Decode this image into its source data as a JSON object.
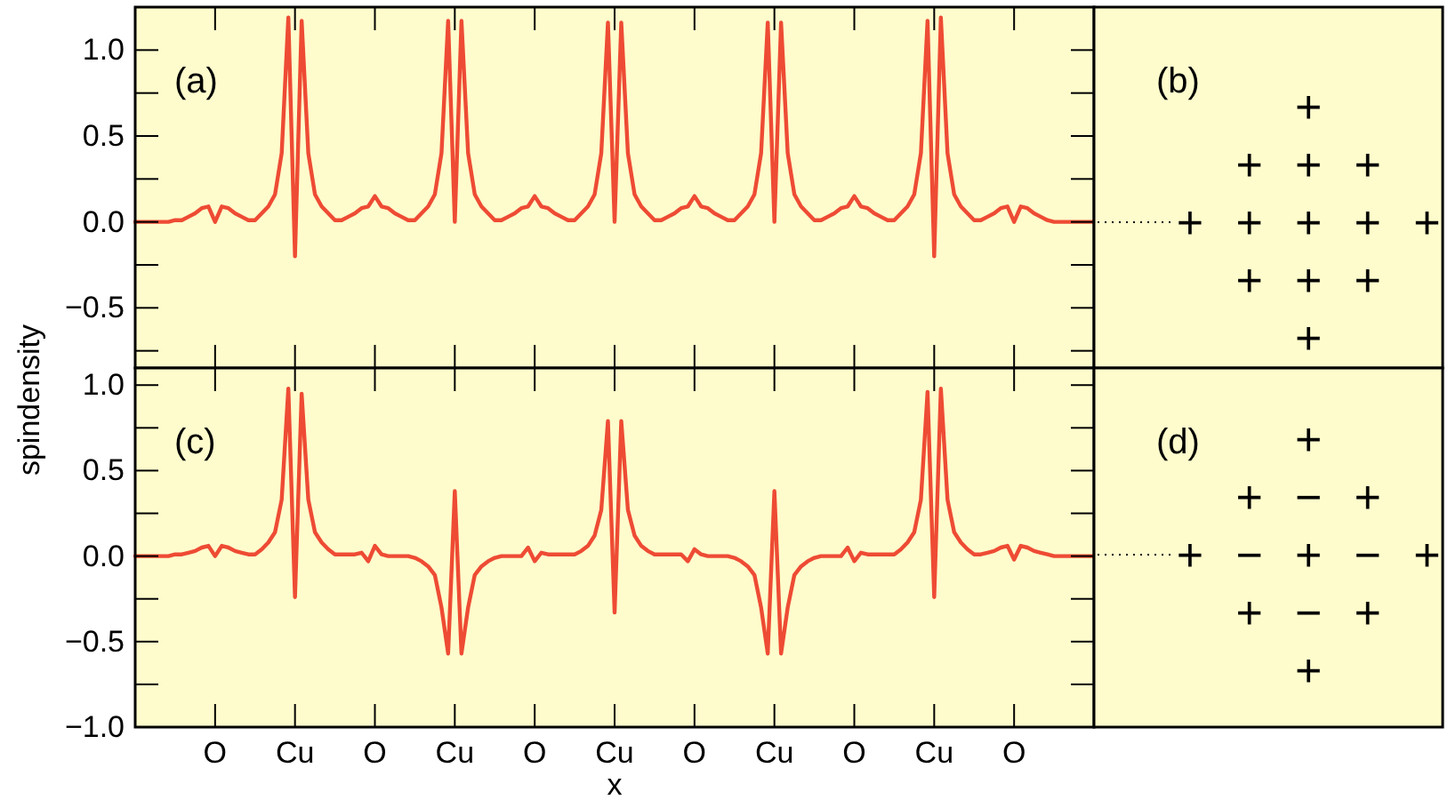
{
  "chart_data": [
    {
      "type": "line",
      "title": "(a)",
      "tick_labels": "y",
      "color": "#ee4b34",
      "categories": [
        null,
        null,
        null,
        null,
        null,
        null,
        null,
        null,
        null,
        null,
        null,
        null,
        null,
        null,
        null,
        null,
        null,
        null,
        null,
        null,
        null,
        null,
        null,
        null,
        null,
        null,
        null,
        null,
        null,
        null,
        null,
        null,
        null,
        null,
        null,
        null,
        null,
        null,
        null,
        null,
        null,
        null,
        null,
        null,
        null,
        null,
        null,
        null,
        null,
        null,
        null,
        null,
        null,
        null,
        null,
        null,
        null,
        null,
        null,
        null,
        null,
        null,
        null,
        null,
        null,
        null,
        null,
        null,
        null,
        null,
        null,
        null,
        null,
        null,
        null,
        null,
        null,
        null,
        null,
        null,
        null,
        null,
        null,
        null,
        null,
        null,
        null,
        null,
        null,
        null,
        null,
        null,
        null,
        null,
        null,
        null,
        null,
        null,
        null,
        null,
        null,
        null,
        null,
        null,
        null,
        null,
        null,
        null,
        null,
        null,
        null,
        null,
        null,
        null,
        null,
        null,
        null,
        null,
        null,
        null,
        null,
        null,
        null,
        null,
        null,
        null,
        null,
        null,
        null,
        null,
        null,
        null,
        null,
        null,
        null,
        null,
        null,
        null,
        null,
        null,
        null,
        null,
        null,
        null,
        null
      ],
      "values": [
        0,
        0,
        0,
        0,
        0,
        0,
        0.01,
        0.01,
        0.03,
        0.05,
        0.08,
        0.09,
        0,
        0.09,
        0.08,
        0.05,
        0.03,
        0.01,
        0.01,
        0.05,
        0.09,
        0.16,
        0.4,
        1.19,
        -0.2,
        1.17,
        0.4,
        0.16,
        0.09,
        0.05,
        0.01,
        0.01,
        0.03,
        0.05,
        0.08,
        0.09,
        0.15,
        0.09,
        0.08,
        0.05,
        0.03,
        0.01,
        0.01,
        0.05,
        0.09,
        0.16,
        0.4,
        1.17,
        0,
        1.17,
        0.4,
        0.16,
        0.09,
        0.05,
        0.01,
        0.01,
        0.03,
        0.05,
        0.08,
        0.09,
        0.15,
        0.09,
        0.08,
        0.05,
        0.03,
        0.01,
        0.01,
        0.05,
        0.09,
        0.16,
        0.4,
        1.16,
        0,
        1.16,
        0.4,
        0.16,
        0.09,
        0.05,
        0.01,
        0.01,
        0.03,
        0.05,
        0.08,
        0.09,
        0.15,
        0.09,
        0.08,
        0.05,
        0.03,
        0.01,
        0.01,
        0.05,
        0.09,
        0.16,
        0.4,
        1.16,
        0,
        1.16,
        0.4,
        0.16,
        0.09,
        0.05,
        0.01,
        0.01,
        0.03,
        0.05,
        0.08,
        0.09,
        0.15,
        0.09,
        0.08,
        0.05,
        0.03,
        0.01,
        0.01,
        0.05,
        0.09,
        0.16,
        0.4,
        1.17,
        -0.2,
        1.19,
        0.4,
        0.16,
        0.09,
        0.05,
        0.01,
        0.01,
        0.03,
        0.05,
        0.08,
        0.09,
        0,
        0.09,
        0.08,
        0.05,
        0.03,
        0.01,
        0,
        0,
        0,
        0,
        0,
        0,
        0
      ],
      "ylim": [
        -0.85,
        1.25
      ],
      "yticks": [
        {
          "value": -0.75,
          "label": null
        },
        {
          "value": -0.5,
          "label": "−0.5"
        },
        {
          "value": -0.25,
          "label": null
        },
        {
          "value": 0,
          "label": "0.0"
        },
        {
          "value": 0.25,
          "label": null
        },
        0.5,
        {
          "value": 0.75,
          "label": null
        },
        {
          "value": 1,
          "label": "1.0"
        }
      ]
    },
    {
      "type": "other",
      "title": "(b)",
      "cell_labels": [
        [
          null,
          null,
          "+",
          null,
          null
        ],
        [
          null,
          "+",
          "+",
          "+",
          null
        ],
        [
          "+",
          "+",
          "+",
          "+",
          "+"
        ],
        [
          null,
          "+",
          "+",
          "+",
          null
        ],
        [
          null,
          null,
          "+",
          null,
          null
        ]
      ]
    },
    {
      "type": "line",
      "title": "(c)",
      "xlabel": "x",
      "ylabel": "spindensity",
      "color": "#ee4b34",
      "categories": [
        null,
        null,
        null,
        null,
        null,
        null,
        null,
        null,
        null,
        null,
        null,
        null,
        "O",
        null,
        null,
        null,
        null,
        null,
        null,
        null,
        null,
        null,
        null,
        null,
        "Cu",
        null,
        null,
        null,
        null,
        null,
        null,
        null,
        null,
        null,
        null,
        null,
        "O",
        null,
        null,
        null,
        null,
        null,
        null,
        null,
        null,
        null,
        null,
        null,
        "Cu",
        null,
        null,
        null,
        null,
        null,
        null,
        null,
        null,
        null,
        null,
        null,
        "O",
        null,
        null,
        null,
        null,
        null,
        null,
        null,
        null,
        null,
        null,
        null,
        "Cu",
        null,
        null,
        null,
        null,
        null,
        null,
        null,
        null,
        null,
        null,
        null,
        "O",
        null,
        null,
        null,
        null,
        null,
        null,
        null,
        null,
        null,
        null,
        null,
        "Cu",
        null,
        null,
        null,
        null,
        null,
        null,
        null,
        null,
        null,
        null,
        null,
        "O",
        null,
        null,
        null,
        null,
        null,
        null,
        null,
        null,
        null,
        null,
        null,
        "Cu",
        null,
        null,
        null,
        null,
        null,
        null,
        null,
        null,
        null,
        null,
        null,
        "O",
        null,
        null,
        null,
        null,
        null,
        null,
        null,
        null,
        null,
        null,
        null,
        null
      ],
      "values": [
        0,
        0,
        0,
        0,
        0,
        0,
        0.01,
        0.01,
        0.02,
        0.03,
        0.05,
        0.06,
        0,
        0.06,
        0.05,
        0.03,
        0.02,
        0.01,
        0.01,
        0.04,
        0.08,
        0.14,
        0.33,
        0.98,
        -0.24,
        0.95,
        0.33,
        0.14,
        0.08,
        0.04,
        0.01,
        0.01,
        0.01,
        0.01,
        0.02,
        -0.03,
        0.06,
        0.01,
        0,
        0,
        0,
        0,
        -0.01,
        -0.03,
        -0.06,
        -0.11,
        -0.3,
        -0.57,
        0.38,
        -0.57,
        -0.3,
        -0.11,
        -0.06,
        -0.03,
        -0.01,
        0,
        0,
        0,
        0,
        0.05,
        -0.03,
        0.02,
        0.01,
        0.01,
        0.01,
        0.01,
        0.01,
        0.03,
        0.06,
        0.12,
        0.27,
        0.79,
        -0.33,
        0.79,
        0.27,
        0.12,
        0.06,
        0.03,
        0.01,
        0.01,
        0.01,
        0.01,
        0.01,
        -0.03,
        0.04,
        0.01,
        0,
        0,
        0,
        0,
        -0.01,
        -0.03,
        -0.06,
        -0.11,
        -0.3,
        -0.57,
        0.38,
        -0.57,
        -0.3,
        -0.11,
        -0.06,
        -0.03,
        -0.01,
        0,
        0,
        0,
        0,
        0.05,
        -0.03,
        0.02,
        0.01,
        0.01,
        0.01,
        0.01,
        0.01,
        0.04,
        0.08,
        0.14,
        0.33,
        0.96,
        -0.24,
        0.98,
        0.33,
        0.14,
        0.08,
        0.04,
        0.01,
        0.01,
        0.02,
        0.03,
        0.05,
        0.06,
        -0.02,
        0.06,
        0.05,
        0.03,
        0.02,
        0.01,
        0,
        0,
        0,
        0,
        0,
        0,
        0
      ],
      "ylim": [
        -1,
        1.1
      ],
      "yticks": [
        {
          "value": -1,
          "label": "−1.0"
        },
        {
          "value": -0.75,
          "label": null
        },
        {
          "value": -0.5,
          "label": "−0.5"
        },
        {
          "value": -0.25,
          "label": null
        },
        {
          "value": 0,
          "label": "0.0"
        },
        {
          "value": 0.25,
          "label": null
        },
        0.5,
        {
          "value": 0.75,
          "label": null
        },
        {
          "value": 1,
          "label": "1.0"
        }
      ]
    },
    {
      "type": "other",
      "title": "(d)",
      "cell_labels": [
        [
          null,
          null,
          "+",
          null,
          null
        ],
        [
          null,
          "+",
          "−",
          "+",
          null
        ],
        [
          "+",
          "−",
          "+",
          "−",
          "+"
        ],
        [
          null,
          "+",
          "−",
          "+",
          null
        ],
        [
          null,
          null,
          "+",
          null,
          null
        ]
      ]
    }
  ]
}
